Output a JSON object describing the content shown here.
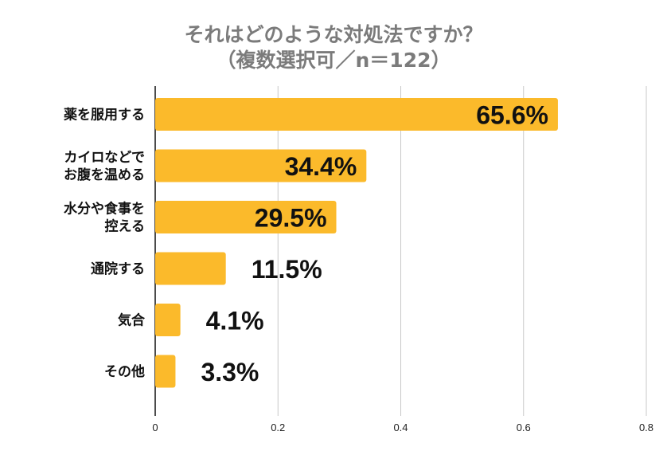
{
  "chart_data": {
    "type": "bar",
    "orientation": "horizontal",
    "title": "それはどのような対処法ですか？",
    "subtitle": "（複数選択可／n＝122）",
    "categories": [
      [
        "薬を服用する"
      ],
      [
        "カイロなどで",
        "お腹を温める"
      ],
      [
        "水分や食事を",
        "控える"
      ],
      [
        "通院する"
      ],
      [
        "気合"
      ],
      [
        "その他"
      ]
    ],
    "values": [
      0.656,
      0.344,
      0.295,
      0.115,
      0.041,
      0.033
    ],
    "data_labels": [
      "65.6%",
      "34.4%",
      "29.5%",
      "11.5%",
      "4.1%",
      "3.3%"
    ],
    "x_ticks": [
      "0",
      "0.2",
      "0.4",
      "0.6",
      "0.8"
    ],
    "xlim": [
      0,
      0.8
    ],
    "grid": true,
    "bar_color": "#FBBA2B"
  }
}
